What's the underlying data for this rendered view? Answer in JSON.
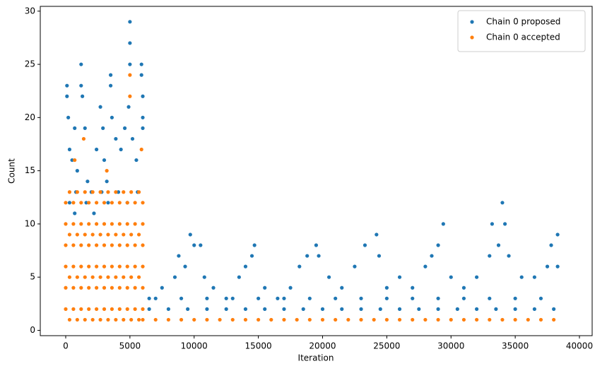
{
  "chart_data": {
    "type": "scatter",
    "xlabel": "Iteration",
    "ylabel": "Count",
    "xlim": [
      -1980,
      40990
    ],
    "ylim": [
      -0.5,
      30.45
    ],
    "xticks": [
      0,
      5000,
      10000,
      15000,
      20000,
      25000,
      30000,
      35000,
      40000
    ],
    "yticks": [
      0,
      5,
      10,
      15,
      20,
      25,
      30
    ],
    "legend": "upper right",
    "series": [
      {
        "name": "Chain 0 proposed",
        "color": "#1f77b4",
        "x": [
          100,
          100,
          200,
          300,
          500,
          700,
          900,
          1200,
          1200,
          1300,
          1500,
          1700,
          2000,
          2400,
          2700,
          2900,
          3000,
          3200,
          3500,
          3500,
          3600,
          3900,
          4300,
          4600,
          4900,
          5000,
          5000,
          5000,
          5200,
          5500,
          5900,
          5900,
          6000,
          6000,
          6000,
          300,
          800,
          1600,
          2200,
          3300,
          4100,
          4800,
          5600,
          700,
          2800,
          6500,
          7500,
          8500,
          8800,
          9300,
          9700,
          10000,
          10500,
          10800,
          11500,
          12500,
          13500,
          14000,
          14500,
          14700,
          15500,
          16500,
          17500,
          18200,
          18800,
          19500,
          19700,
          20500,
          21500,
          22500,
          23300,
          24200,
          24400,
          25000,
          26000,
          27000,
          28000,
          28500,
          29000,
          29400,
          30000,
          31000,
          32000,
          33000,
          33200,
          33700,
          34000,
          34200,
          34500,
          35500,
          36500,
          37500,
          37800,
          38300,
          38300,
          6500,
          8000,
          9500,
          11000,
          12500,
          14000,
          15500,
          17000,
          18500,
          20000,
          21500,
          23000,
          24500,
          26000,
          27500,
          29000,
          30500,
          32000,
          33500,
          35000,
          36500,
          38000,
          7000,
          9000,
          11000,
          13000,
          15000,
          17000,
          19000,
          21000,
          23000,
          25000,
          27000,
          29000,
          31000,
          33000,
          35000,
          37000
        ],
        "values": [
          23,
          22,
          20,
          17,
          16,
          19,
          15,
          25,
          23,
          22,
          19,
          14,
          13,
          17,
          21,
          19,
          16,
          14,
          24,
          23,
          20,
          18,
          17,
          19,
          21,
          29,
          27,
          25,
          18,
          16,
          25,
          24,
          22,
          20,
          19,
          12,
          13,
          12,
          11,
          12,
          13,
          12,
          13,
          11,
          13,
          3,
          4,
          5,
          7,
          6,
          9,
          8,
          8,
          5,
          4,
          3,
          5,
          6,
          7,
          8,
          4,
          3,
          4,
          6,
          7,
          8,
          7,
          5,
          4,
          6,
          8,
          9,
          7,
          4,
          5,
          4,
          6,
          7,
          8,
          10,
          5,
          4,
          5,
          7,
          10,
          8,
          12,
          10,
          7,
          5,
          5,
          6,
          8,
          9,
          6,
          2,
          2,
          2,
          2,
          2,
          2,
          2,
          2,
          2,
          2,
          2,
          2,
          2,
          2,
          2,
          2,
          2,
          2,
          2,
          2,
          2,
          2,
          3,
          3,
          3,
          3,
          3,
          3,
          3,
          3,
          3,
          3,
          3,
          3,
          3,
          3,
          3,
          3
        ]
      },
      {
        "name": "Chain 0 accepted",
        "color": "#ff7f0e",
        "x": [
          0,
          0,
          0,
          0,
          0,
          0,
          600,
          600,
          600,
          600,
          600,
          600,
          1200,
          1200,
          1200,
          1200,
          1200,
          1200,
          1800,
          1800,
          1800,
          1800,
          1800,
          1800,
          2400,
          2400,
          2400,
          2400,
          2400,
          2400,
          3000,
          3000,
          3000,
          3000,
          3000,
          3000,
          3600,
          3600,
          3600,
          3600,
          3600,
          3600,
          4200,
          4200,
          4200,
          4200,
          4200,
          4200,
          4800,
          4800,
          4800,
          4800,
          4800,
          4800,
          5400,
          5400,
          5400,
          5400,
          5400,
          5400,
          6000,
          6000,
          6000,
          6000,
          6000,
          6000,
          300,
          300,
          300,
          300,
          900,
          900,
          900,
          900,
          1500,
          1500,
          1500,
          1500,
          2100,
          2100,
          2100,
          2100,
          2700,
          2700,
          2700,
          2700,
          3300,
          3300,
          3300,
          3300,
          3900,
          3900,
          3900,
          3900,
          4500,
          4500,
          4500,
          4500,
          5100,
          5100,
          5100,
          5100,
          5700,
          5700,
          5700,
          5700,
          1400,
          5000,
          5000,
          5900,
          3200,
          700,
          6000,
          7000,
          8000,
          9000,
          10000,
          11000,
          12000,
          13000,
          14000,
          15000,
          16000,
          17000,
          18000,
          19000,
          20000,
          21000,
          22000,
          23000,
          24000,
          25000,
          26000,
          27000,
          28000,
          29000,
          30000,
          31000,
          32000,
          33000,
          34000,
          35000,
          36000,
          37000,
          38000
        ],
        "values": [
          2,
          4,
          6,
          8,
          10,
          12,
          2,
          4,
          6,
          8,
          10,
          12,
          2,
          4,
          6,
          8,
          10,
          12,
          2,
          4,
          6,
          8,
          10,
          12,
          2,
          4,
          6,
          8,
          10,
          12,
          2,
          4,
          6,
          8,
          10,
          12,
          2,
          4,
          6,
          8,
          10,
          12,
          2,
          4,
          6,
          8,
          10,
          12,
          2,
          4,
          6,
          8,
          10,
          12,
          2,
          4,
          6,
          8,
          10,
          12,
          2,
          4,
          6,
          8,
          10,
          12,
          1,
          5,
          9,
          13,
          1,
          5,
          9,
          13,
          1,
          5,
          9,
          13,
          1,
          5,
          9,
          13,
          1,
          5,
          9,
          13,
          1,
          5,
          9,
          13,
          1,
          5,
          9,
          13,
          1,
          5,
          9,
          13,
          1,
          5,
          9,
          13,
          1,
          5,
          9,
          13,
          18,
          24,
          22,
          17,
          15,
          16,
          1,
          1,
          1,
          1,
          1,
          1,
          1,
          1,
          1,
          1,
          1,
          1,
          1,
          1,
          1,
          1,
          1,
          1,
          1,
          1,
          1,
          1,
          1,
          1,
          1,
          1,
          1,
          1,
          1,
          1,
          1,
          1,
          1
        ]
      }
    ]
  }
}
